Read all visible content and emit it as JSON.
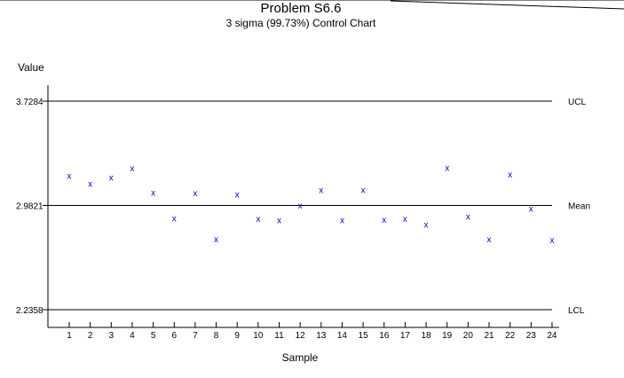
{
  "chart_data": {
    "type": "scatter",
    "title": "Problem S6.6",
    "subtitle": "3 sigma (99.73%) Control Chart",
    "xlabel": "Sample",
    "ylabel": "Value",
    "x": [
      1,
      2,
      3,
      4,
      5,
      6,
      7,
      8,
      9,
      10,
      11,
      12,
      13,
      14,
      15,
      16,
      17,
      18,
      19,
      20,
      21,
      22,
      23,
      24
    ],
    "values": [
      3.195,
      3.138,
      3.182,
      3.248,
      3.075,
      2.889,
      3.072,
      2.74,
      3.062,
      2.886,
      2.876,
      2.982,
      3.093,
      2.876,
      3.093,
      2.881,
      2.886,
      2.844,
      3.253,
      2.902,
      2.74,
      3.205,
      2.96,
      2.734
    ],
    "marker": "x",
    "ylim": [
      2.2358,
      3.7284
    ],
    "reference_lines": [
      {
        "name": "UCL",
        "value": 3.7284,
        "tick_label": "3.7284"
      },
      {
        "name": "Mean",
        "value": 2.9821,
        "tick_label": "2.9821"
      },
      {
        "name": "LCL",
        "value": 2.2358,
        "tick_label": "2.2358"
      }
    ],
    "colors": {
      "points": "#0000ee",
      "lines": "#000000"
    },
    "grid": false,
    "legend": "none"
  }
}
